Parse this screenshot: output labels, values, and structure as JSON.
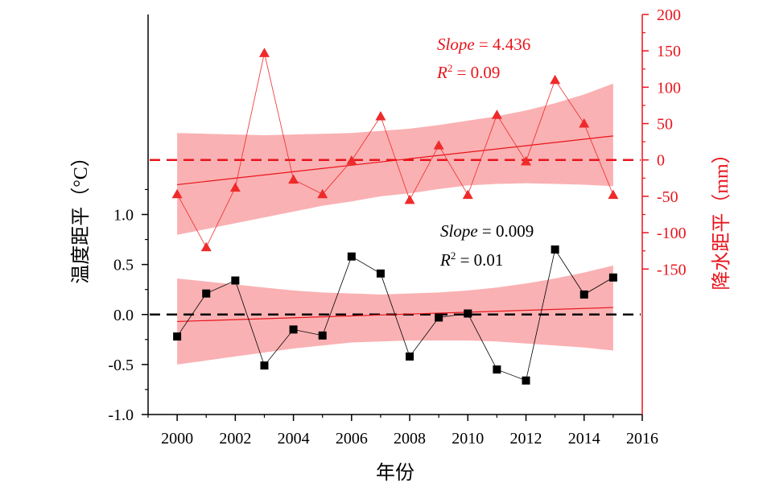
{
  "chart_data": {
    "type": "line",
    "x": [
      2000,
      2001,
      2002,
      2003,
      2004,
      2005,
      2006,
      2007,
      2008,
      2009,
      2010,
      2011,
      2012,
      2013,
      2014,
      2015
    ],
    "xlabel": "年份",
    "xlim": [
      1999,
      2016
    ],
    "xticks": [
      "2000",
      "2002",
      "2004",
      "2006",
      "2008",
      "2010",
      "2012",
      "2014",
      "2016"
    ],
    "y_left": {
      "label": "温度距平（°C）",
      "ticks": [
        "1.0",
        "0.5",
        "0.0",
        "-0.5",
        "-1.0"
      ],
      "lim": [
        -1.0,
        3.0
      ]
    },
    "y_right": {
      "label": "降水距平（mm）",
      "ticks": [
        "200",
        "150",
        "100",
        "50",
        "0",
        "-50",
        "-100",
        "-150"
      ],
      "lim": [
        -350,
        200
      ]
    },
    "series": [
      {
        "axis": "right",
        "marker": "triangle",
        "color": "#ee2a2a",
        "values": [
          -47,
          -120,
          -38,
          147,
          -27,
          -47,
          -1,
          60,
          -55,
          20,
          -48,
          62,
          -2,
          110,
          50,
          -48
        ],
        "trend": {
          "start": -34,
          "end": 33
        },
        "band_upper": [
          37,
          36,
          35,
          34,
          35,
          36,
          37,
          40,
          43,
          48,
          54,
          60,
          68,
          78,
          90,
          105
        ],
        "band_lower": [
          -103,
          -95,
          -87,
          -79,
          -71,
          -63,
          -57,
          -50,
          -46,
          -40,
          -35,
          -33,
          -32,
          -33,
          -34,
          -36
        ]
      },
      {
        "axis": "left",
        "marker": "square",
        "color": "#000000",
        "values": [
          -0.22,
          0.21,
          0.34,
          -0.51,
          -0.15,
          -0.21,
          0.58,
          0.41,
          -0.42,
          -0.03,
          0.01,
          -0.55,
          -0.66,
          0.65,
          0.2,
          0.37
        ],
        "trend": {
          "start": -0.07,
          "end": 0.07
        },
        "band_upper": [
          0.36,
          0.33,
          0.3,
          0.27,
          0.24,
          0.22,
          0.21,
          0.2,
          0.21,
          0.22,
          0.24,
          0.27,
          0.31,
          0.36,
          0.42,
          0.49
        ],
        "band_lower": [
          -0.5,
          -0.46,
          -0.42,
          -0.38,
          -0.34,
          -0.31,
          -0.28,
          -0.27,
          -0.26,
          -0.26,
          -0.26,
          -0.27,
          -0.29,
          -0.31,
          -0.33,
          -0.36
        ]
      }
    ],
    "annotations": [
      {
        "series": "right",
        "slope_word": "Slope",
        "slope_rest": " = 4.436",
        "r2_base": "R",
        "r2_sup": "2",
        "r2_rest": " = 0.09"
      },
      {
        "series": "left",
        "slope_word": "Slope",
        "slope_rest": " = 0.009",
        "r2_base": "R",
        "r2_sup": "2",
        "r2_rest": " = 0.01"
      }
    ],
    "reference_lines": [
      {
        "axis": "right",
        "value": 0,
        "color": "#e8141c",
        "style": "dashed"
      },
      {
        "axis": "left",
        "value": 0,
        "color": "#000000",
        "style": "dashed"
      }
    ],
    "band_color": "#f9a3a6",
    "grid": false
  }
}
